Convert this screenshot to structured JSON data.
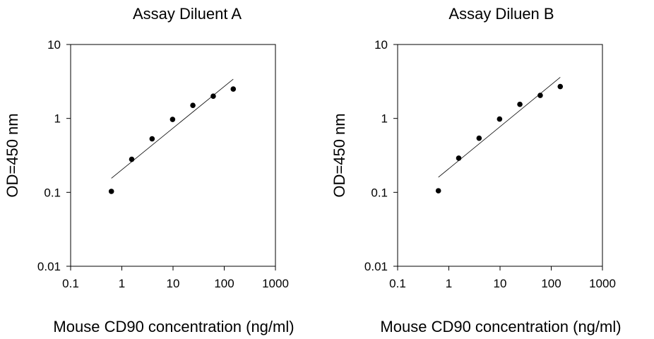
{
  "chart_data": [
    {
      "type": "scatter",
      "title": "Assay Diluent A",
      "xlabel": "Mouse CD90 concentration (ng/ml)",
      "ylabel": "OD=450 nm",
      "xscale": "log",
      "yscale": "log",
      "xlim": [
        0.1,
        1000
      ],
      "ylim": [
        0.01,
        10
      ],
      "x_ticks": [
        "0.1",
        "1",
        "10",
        "100",
        "1000"
      ],
      "y_ticks": [
        "0.01",
        "0.1",
        "1",
        "10"
      ],
      "grid": false,
      "series": [
        {
          "x": [
            0.625,
            1.56,
            3.9,
            9.8,
            24.4,
            61,
            150
          ],
          "y": [
            0.103,
            0.28,
            0.53,
            0.97,
            1.5,
            2.0,
            2.5
          ]
        }
      ],
      "fit_line": {
        "x": [
          0.625,
          150
        ],
        "y": [
          0.155,
          3.4
        ]
      }
    },
    {
      "type": "scatter",
      "title": "Assay Diluen B",
      "xlabel": "Mouse CD90 concentration (ng/ml)",
      "ylabel": "OD=450 nm",
      "xscale": "log",
      "yscale": "log",
      "xlim": [
        0.1,
        1000
      ],
      "ylim": [
        0.01,
        10
      ],
      "x_ticks": [
        "0.1",
        "1",
        "10",
        "100",
        "1000"
      ],
      "y_ticks": [
        "0.01",
        "0.1",
        "1",
        "10"
      ],
      "grid": false,
      "series": [
        {
          "x": [
            0.625,
            1.56,
            3.9,
            9.8,
            24.4,
            61,
            150
          ],
          "y": [
            0.105,
            0.29,
            0.54,
            0.98,
            1.55,
            2.05,
            2.7
          ]
        }
      ],
      "fit_line": {
        "x": [
          0.625,
          150
        ],
        "y": [
          0.16,
          3.6
        ]
      }
    }
  ]
}
